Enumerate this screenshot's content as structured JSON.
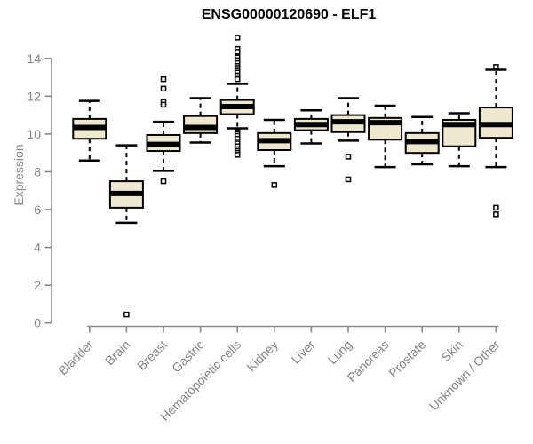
{
  "chart_data": {
    "type": "box",
    "title": "ENSG00000120690 - ELF1",
    "ylabel": "Expression",
    "xlabel": "",
    "yticks": [
      0,
      2,
      4,
      6,
      8,
      10,
      12,
      14
    ],
    "ylim": [
      0,
      15.3
    ],
    "grid": false,
    "legend": "none",
    "categories": [
      "Bladder",
      "Brain",
      "Breast",
      "Gastric",
      "Hematopoietic cells",
      "Kidney",
      "Liver",
      "Lung",
      "Pancreas",
      "Prostate",
      "Skin",
      "Unknown / Other"
    ],
    "series": [
      {
        "name": "Bladder",
        "low": 8.6,
        "q1": 9.75,
        "median": 10.35,
        "q3": 10.8,
        "high": 11.75,
        "outliers": []
      },
      {
        "name": "Brain",
        "low": 5.3,
        "q1": 6.1,
        "median": 6.85,
        "q3": 7.5,
        "high": 9.4,
        "outliers": [
          0.45
        ]
      },
      {
        "name": "Breast",
        "low": 8.05,
        "q1": 9.1,
        "median": 9.45,
        "q3": 9.95,
        "high": 10.65,
        "outliers": [
          12.9,
          12.4,
          11.7,
          11.55,
          7.5
        ]
      },
      {
        "name": "Gastric",
        "low": 9.55,
        "q1": 10.05,
        "median": 10.35,
        "q3": 10.95,
        "high": 11.9,
        "outliers": []
      },
      {
        "name": "Hematopoietic cells",
        "low": 10.3,
        "q1": 11.05,
        "median": 11.45,
        "q3": 11.8,
        "high": 12.65,
        "outliers": [
          15.1,
          14.5,
          14.35,
          14.05,
          13.9,
          13.75,
          13.6,
          13.5,
          13.35,
          13.25,
          13.1,
          13.0,
          12.9,
          10.1,
          10.0,
          9.9,
          9.75,
          9.6,
          9.5,
          9.35,
          9.2,
          9.1,
          9.0,
          8.9
        ]
      },
      {
        "name": "Kidney",
        "low": 8.3,
        "q1": 9.15,
        "median": 9.65,
        "q3": 10.05,
        "high": 10.75,
        "outliers": [
          7.3
        ]
      },
      {
        "name": "Liver",
        "low": 9.5,
        "q1": 10.2,
        "median": 10.5,
        "q3": 10.8,
        "high": 11.25,
        "outliers": []
      },
      {
        "name": "Lung",
        "low": 9.65,
        "q1": 10.1,
        "median": 10.65,
        "q3": 11.0,
        "high": 11.9,
        "outliers": [
          8.8,
          7.6
        ]
      },
      {
        "name": "Pancreas",
        "low": 8.25,
        "q1": 9.7,
        "median": 10.6,
        "q3": 10.85,
        "high": 11.5,
        "outliers": []
      },
      {
        "name": "Prostate",
        "low": 8.4,
        "q1": 9.0,
        "median": 9.6,
        "q3": 10.05,
        "high": 10.9,
        "outliers": []
      },
      {
        "name": "Skin",
        "low": 8.3,
        "q1": 9.35,
        "median": 10.5,
        "q3": 10.75,
        "high": 11.1,
        "outliers": []
      },
      {
        "name": "Unknown / Other",
        "low": 8.25,
        "q1": 9.8,
        "median": 10.5,
        "q3": 11.4,
        "high": 13.4,
        "outliers": [
          13.55,
          6.1,
          5.75
        ]
      }
    ],
    "colors": {
      "box_fill": "#EFE7CE",
      "box_stroke": "#000000",
      "median": "#000000",
      "whisker": "#000000",
      "outlier_fill": "#FFFFFF",
      "axis": "#8A8A8A",
      "tick_label": "#848484",
      "title": "#000000",
      "background": "#FFFFFF"
    }
  }
}
